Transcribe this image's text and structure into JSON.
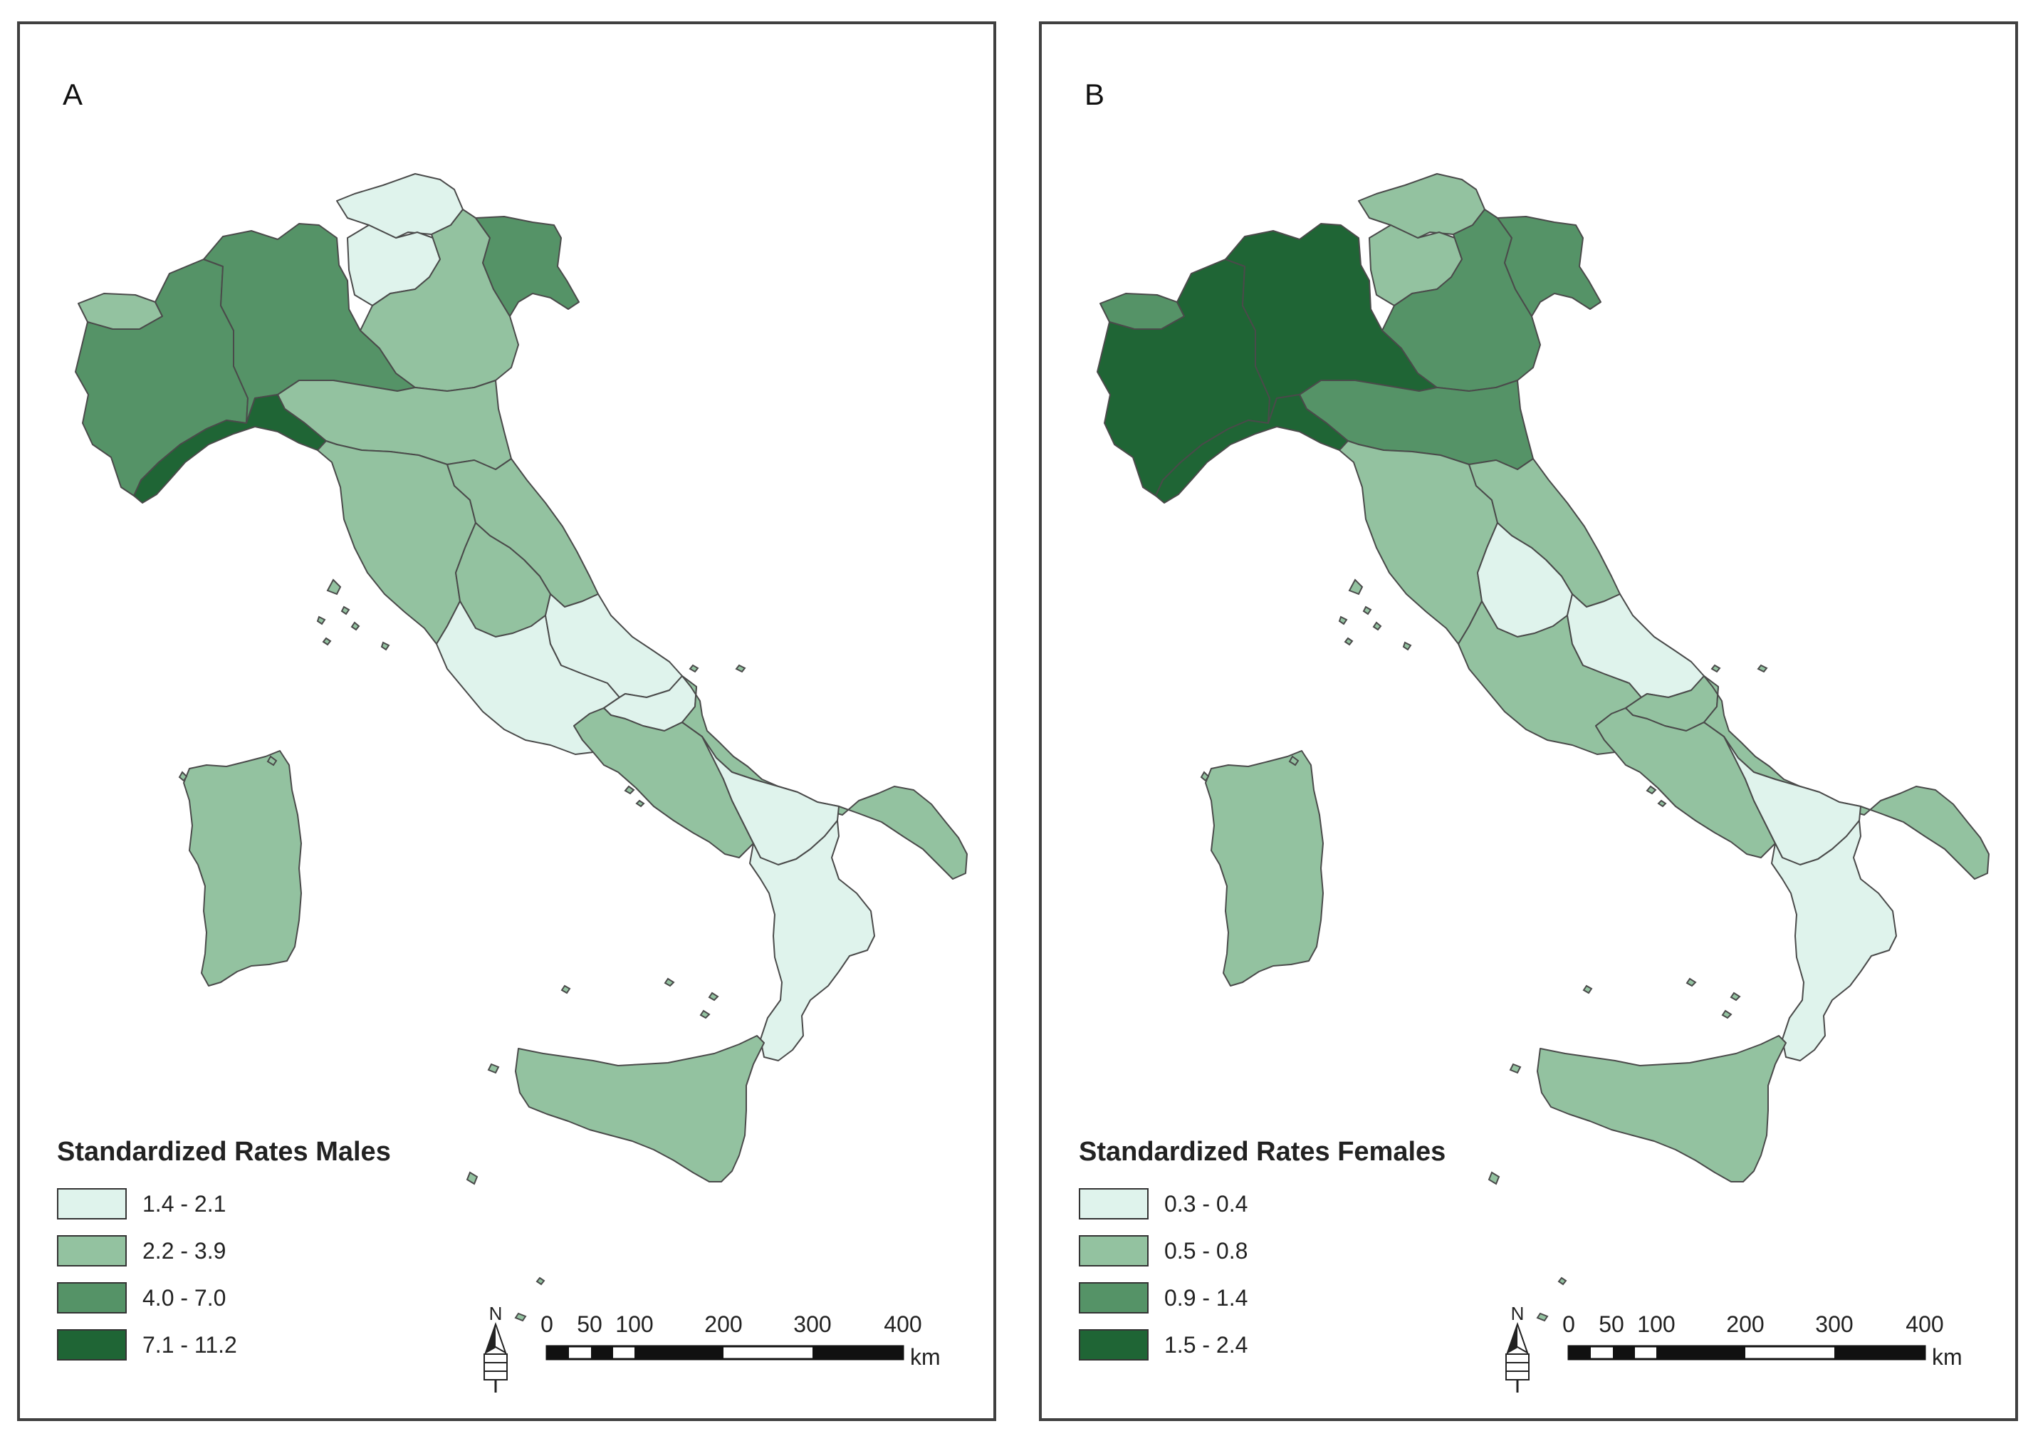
{
  "classes": {
    "c1": "#dff3ec",
    "c2": "#93c2a0",
    "c3": "#559367",
    "c4": "#1f6535",
    "outline": "#4a4a4a"
  },
  "panels": [
    {
      "id": "A",
      "letter": "A",
      "legend_title": "Standardized Rates Males",
      "legend": [
        {
          "label": "1.4 - 2.1",
          "color": "#dff3ec"
        },
        {
          "label": "2.2 - 3.9",
          "color": "#93c2a0"
        },
        {
          "label": "4.0 - 7.0",
          "color": "#559367"
        },
        {
          "label": "7.1 - 11.2",
          "color": "#1f6535"
        }
      ],
      "regions": {
        "trentino": "c1",
        "bolzano": "c1",
        "aosta": "c2",
        "piedmont": "c3",
        "lombardy": "c3",
        "liguria": "c4",
        "veneto": "c2",
        "friuli": "c3",
        "emilia": "c2",
        "tuscany": "c2",
        "marche": "c2",
        "umbria": "c2",
        "lazio": "c1",
        "abruzzo": "c1",
        "molise": "c1",
        "campania": "c2",
        "apulia": "c2",
        "basilicata": "c1",
        "calabria": "c1",
        "sicily": "c2",
        "sardinia": "c2"
      }
    },
    {
      "id": "B",
      "letter": "B",
      "legend_title": "Standardized Rates Females",
      "legend": [
        {
          "label": "0.3 - 0.4",
          "color": "#dff3ec"
        },
        {
          "label": "0.5 - 0.8",
          "color": "#93c2a0"
        },
        {
          "label": "0.9 - 1.4",
          "color": "#559367"
        },
        {
          "label": "1.5 - 2.4",
          "color": "#1f6535"
        }
      ],
      "regions": {
        "trentino": "c2",
        "bolzano": "c2",
        "aosta": "c3",
        "piedmont": "c4",
        "lombardy": "c4",
        "liguria": "c4",
        "veneto": "c3",
        "friuli": "c3",
        "emilia": "c3",
        "tuscany": "c2",
        "marche": "c2",
        "umbria": "c1",
        "lazio": "c2",
        "abruzzo": "c1",
        "molise": "c2",
        "campania": "c2",
        "apulia": "c2",
        "basilicata": "c1",
        "calabria": "c1",
        "sicily": "c2",
        "sardinia": "c2"
      }
    }
  ],
  "north_label": "N",
  "scale": {
    "ticks": [
      "0",
      "50",
      "100",
      "200",
      "300",
      "400"
    ],
    "unit": "km"
  }
}
